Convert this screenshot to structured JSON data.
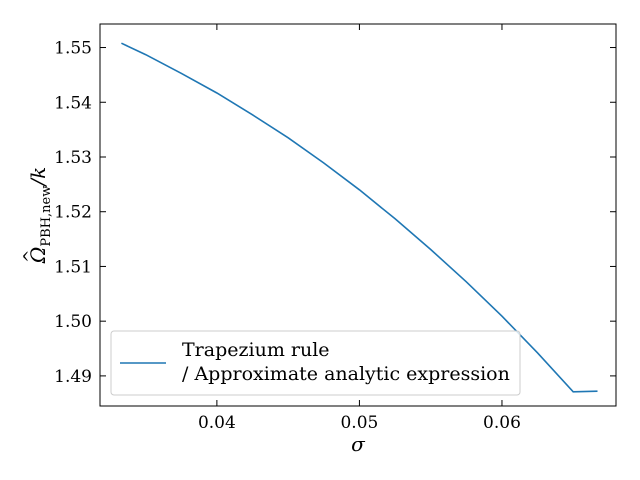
{
  "chart_data": {
    "type": "line",
    "xlabel": "σ",
    "ylabel": {
      "omega": "Ω",
      "hat": "^",
      "subscript": "PBH,new",
      "suffix": "/k"
    },
    "xlim": [
      0.0318,
      0.068
    ],
    "ylim": [
      1.4845,
      1.5543
    ],
    "x_ticks": [
      0.04,
      0.05,
      0.06
    ],
    "x_tick_labels": [
      "0.04",
      "0.05",
      "0.06"
    ],
    "y_ticks": [
      1.49,
      1.5,
      1.51,
      1.52,
      1.53,
      1.54,
      1.55
    ],
    "y_tick_labels": [
      "1.49",
      "1.50",
      "1.51",
      "1.52",
      "1.53",
      "1.54",
      "1.55"
    ],
    "grid": false,
    "legend_position": "lower-left",
    "legend": {
      "line1": "Trapezium rule",
      "line2": "/ Approximate analytic expression"
    },
    "series": [
      {
        "name": "Trapezium rule / Approximate analytic expression",
        "color": "#1f77b4",
        "x": [
          0.0333,
          0.035,
          0.0375,
          0.04,
          0.0425,
          0.045,
          0.0475,
          0.05,
          0.0525,
          0.055,
          0.0575,
          0.06,
          0.0625,
          0.065,
          0.0667
        ],
        "y": [
          1.5508,
          1.5487,
          1.5453,
          1.5417,
          1.5377,
          1.5335,
          1.5289,
          1.524,
          1.5187,
          1.5131,
          1.5072,
          1.5009,
          1.4942,
          1.4871,
          1.4872
        ]
      }
    ]
  }
}
